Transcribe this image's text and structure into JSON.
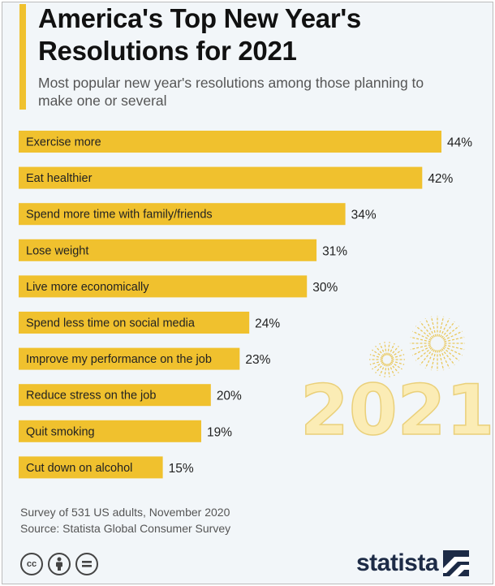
{
  "header": {
    "title": "America's Top New Year's Resolutions for 2021",
    "subtitle": "Most popular new year's resolutions among those planning to make one or several"
  },
  "chart_data": {
    "type": "bar",
    "orientation": "horizontal",
    "title": "America's Top New Year's Resolutions for 2021",
    "subtitle": "Most popular new year's resolutions among those planning to make one or several",
    "categories": [
      "Exercise more",
      "Eat healthier",
      "Spend more time with family/friends",
      "Lose weight",
      "Live more economically",
      "Spend less time on social media",
      "Improve my performance on the job",
      "Reduce stress on the job",
      "Quit smoking",
      "Cut down on alcohol"
    ],
    "values": [
      44,
      42,
      34,
      31,
      30,
      24,
      23,
      20,
      19,
      15
    ],
    "value_labels": [
      "44%",
      "42%",
      "34%",
      "31%",
      "30%",
      "24%",
      "23%",
      "20%",
      "19%",
      "15%"
    ],
    "unit": "%",
    "bar_color": "#f0c12e",
    "xlim": [
      0,
      44
    ],
    "grid": false
  },
  "decoration": {
    "year": "2021",
    "year_fill": "#fbecb5",
    "year_stroke": "#ead07a",
    "firework_color": "#e9c85e"
  },
  "footer": {
    "note": "Survey of 531 US adults, November 2020",
    "source": "Source: Statista Global Consumer Survey",
    "license_icons": [
      "cc-icon",
      "by-icon",
      "nd-icon"
    ],
    "brand": "statista",
    "brand_color": "#1d2b46"
  }
}
